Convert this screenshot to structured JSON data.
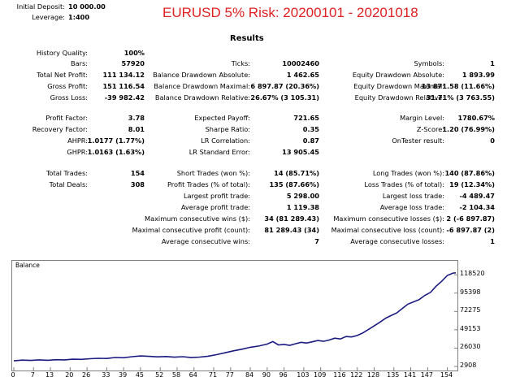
{
  "header": {
    "initial_deposit_label": "Initial Deposit:",
    "initial_deposit_value": "10 000.00",
    "leverage_label": "Leverage:",
    "leverage_value": "1:400",
    "title": "EURUSD 5% Risk: 20200101 - 20201018"
  },
  "results_title": "Results",
  "rows": [
    {
      "y": 64,
      "cells": [
        {
          "l": "History Quality:",
          "v": "100%"
        }
      ]
    },
    {
      "y": 77,
      "cells": [
        {
          "l": "Bars:",
          "v": "57920"
        },
        {
          "l": "Ticks:",
          "v": "10002460"
        },
        {
          "l": "Symbols:",
          "v": "1"
        }
      ]
    },
    {
      "y": 91,
      "cells": [
        {
          "l": "Total Net Profit:",
          "v": "111 134.12"
        },
        {
          "l": "Balance Drawdown Absolute:",
          "v": "1 462.65"
        },
        {
          "l": "Equity Drawdown Absolute:",
          "v": "1 893.99"
        }
      ]
    },
    {
      "y": 105,
      "cells": [
        {
          "l": "Gross Profit:",
          "v": "151 116.54"
        },
        {
          "l": "Balance Drawdown Maximal:",
          "v": "6 897.87 (20.36%)"
        },
        {
          "l": "Equity Drawdown Maximal:",
          "v": "13 871.58 (11.66%)"
        }
      ]
    },
    {
      "y": 119,
      "cells": [
        {
          "l": "Gross Loss:",
          "v": "-39 982.42"
        },
        {
          "l": "Balance Drawdown Relative:",
          "v": "26.67% (3 105.31)"
        },
        {
          "l": "Equity Drawdown Relative:",
          "v": "31.71% (3 763.55)"
        }
      ]
    },
    {
      "y": 144,
      "cells": [
        {
          "l": "Profit Factor:",
          "v": "3.78"
        },
        {
          "l": "Expected Payoff:",
          "v": "721.65"
        },
        {
          "l": "Margin Level:",
          "v": "1780.67%"
        }
      ]
    },
    {
      "y": 158,
      "cells": [
        {
          "l": "Recovery Factor:",
          "v": "8.01"
        },
        {
          "l": "Sharpe Ratio:",
          "v": "0.35"
        },
        {
          "l": "Z-Score:",
          "v": "1.20 (76.99%)"
        }
      ]
    },
    {
      "y": 172,
      "cells": [
        {
          "l": "AHPR:",
          "v": "1.0177 (1.77%)"
        },
        {
          "l": "LR Correlation:",
          "v": "0.87"
        },
        {
          "l": "OnTester result:",
          "v": "0"
        }
      ]
    },
    {
      "y": 186,
      "cells": [
        {
          "l": "GHPR:",
          "v": "1.0163 (1.63%)"
        },
        {
          "l": "LR Standard Error:",
          "v": "13 905.45"
        }
      ]
    },
    {
      "y": 212,
      "cells": [
        {
          "l": "Total Trades:",
          "v": "154"
        },
        {
          "l": "Short Trades (won %):",
          "v": "14 (85.71%)"
        },
        {
          "l": "Long Trades (won %):",
          "v": "140 (87.86%)"
        }
      ]
    },
    {
      "y": 226,
      "cells": [
        {
          "l": "Total Deals:",
          "v": "308"
        },
        {
          "l": "Profit Trades (% of total):",
          "v": "135 (87.66%)"
        },
        {
          "l": "Loss Trades (% of total):",
          "v": "19 (12.34%)"
        }
      ]
    },
    {
      "y": 240,
      "cells": [
        null,
        {
          "l": "Largest profit trade:",
          "v": "5 298.00"
        },
        {
          "l": "Largest loss trade:",
          "v": "-4 489.47"
        }
      ]
    },
    {
      "y": 254,
      "cells": [
        null,
        {
          "l": "Average profit trade:",
          "v": "1 119.38"
        },
        {
          "l": "Average loss trade:",
          "v": "-2 104.34"
        }
      ]
    },
    {
      "y": 268,
      "cells": [
        null,
        {
          "l": "Maximum consecutive wins ($):",
          "v": "34 (81 289.43)"
        },
        {
          "l": "Maximum consecutive losses ($):",
          "v": "2 (-6 897.87)"
        }
      ]
    },
    {
      "y": 282,
      "cells": [
        null,
        {
          "l": "Maximal consecutive profit (count):",
          "v": "81 289.43 (34)"
        },
        {
          "l": "Maximal consecutive loss (count):",
          "v": "-6 897.87 (2)"
        }
      ]
    },
    {
      "y": 296,
      "cells": [
        null,
        {
          "l": "Average consecutive wins:",
          "v": "7"
        },
        {
          "l": "Average consecutive losses:",
          "v": "1"
        }
      ]
    }
  ],
  "chart_data": {
    "type": "line",
    "title": "Balance",
    "xlabel": "",
    "ylabel": "",
    "x_ticks": [
      0,
      7,
      13,
      20,
      26,
      33,
      39,
      45,
      52,
      58,
      64,
      71,
      77,
      84,
      90,
      96,
      103,
      109,
      116,
      122,
      128,
      135,
      141,
      147,
      154
    ],
    "y_ticks": [
      2908,
      26030,
      49153,
      72275,
      95398,
      118520
    ],
    "xlim": [
      0,
      157
    ],
    "ylim": [
      2908,
      130000
    ],
    "series": [
      {
        "color": "#1a1a80",
        "x": [
          0,
          3,
          6,
          9,
          12,
          15,
          18,
          21,
          24,
          27,
          30,
          33,
          36,
          39,
          42,
          45,
          48,
          51,
          54,
          57,
          60,
          63,
          66,
          69,
          72,
          75,
          78,
          81,
          84,
          87,
          90,
          92,
          94,
          96,
          98,
          100,
          102,
          104,
          106,
          108,
          110,
          112,
          114,
          116,
          118,
          120,
          122,
          124,
          126,
          128,
          130,
          132,
          134,
          136,
          138,
          140,
          142,
          144,
          146,
          148,
          150,
          152,
          154,
          156,
          157
        ],
        "values": [
          10000,
          10900,
          10500,
          11200,
          10700,
          11400,
          11200,
          12000,
          11800,
          12600,
          13200,
          13000,
          14200,
          13900,
          15200,
          16100,
          15600,
          15000,
          15400,
          14600,
          15200,
          14100,
          14700,
          15800,
          17800,
          20100,
          22600,
          24600,
          27100,
          28600,
          31100,
          34300,
          30100,
          30700,
          29600,
          31500,
          33300,
          32400,
          34000,
          35600,
          34600,
          36200,
          38600,
          37500,
          40600,
          40100,
          42000,
          45200,
          49600,
          54100,
          58600,
          63600,
          67100,
          70300,
          76100,
          81500,
          84400,
          87300,
          92600,
          96300,
          104100,
          110400,
          117700,
          120700,
          121000
        ]
      }
    ]
  }
}
